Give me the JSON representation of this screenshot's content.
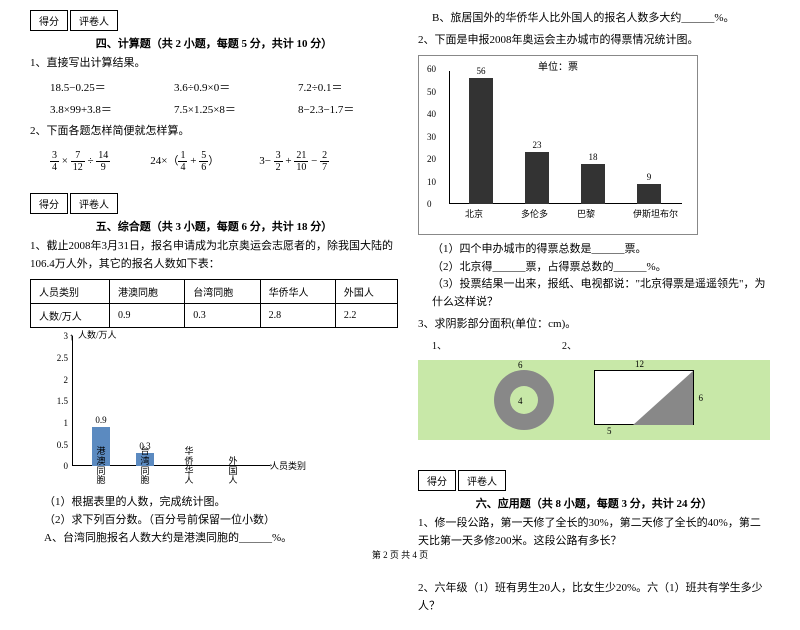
{
  "score_labels": {
    "score": "得分",
    "reviewer": "评卷人"
  },
  "section4": {
    "title": "四、计算题（共 2 小题，每题 5 分，共计 10 分）",
    "q1": "1、直接写出计算结果。",
    "calc": [
      "18.5−0.25＝",
      "3.6÷0.9×0＝",
      "7.2÷0.1＝",
      "3.8×99+3.8＝",
      "7.5×1.25×8＝",
      "8−2.3−1.7＝"
    ],
    "q2": "2、下面各题怎样简便就怎样算。",
    "fracs": [
      "3/4 × 7/12 ÷ 14/9",
      "24×（1/4 + 5/6）",
      "3− 3/2 + 21/10 − 2/7"
    ]
  },
  "section5": {
    "title": "五、综合题（共 3 小题，每题 6 分，共计 18 分）",
    "q1": "1、截止2008年3月31日，报名申请成为北京奥运会志愿者的，除我国大陆的106.4万人外，其它的报名人数如下表：",
    "table": {
      "headers": [
        "人员类别",
        "港澳同胞",
        "台湾同胞",
        "华侨华人",
        "外国人"
      ],
      "row_label": "人数/万人",
      "values": [
        "0.9",
        "0.3",
        "2.8",
        "2.2"
      ]
    },
    "chart1": {
      "y_label": "人数/万人",
      "x_label": "人员类别",
      "y_ticks": [
        "0",
        "0.5",
        "1",
        "1.5",
        "2",
        "2.5",
        "3"
      ],
      "categories": [
        "港澳同胞",
        "台湾同胞",
        "华侨华人",
        "外国人"
      ],
      "values": [
        0.9,
        0.3,
        null,
        null
      ],
      "bar_labels": [
        "0.9",
        "0.3",
        "",
        ""
      ],
      "bar_color": "#5b8ac0"
    },
    "sub1": "（1）根据表里的人数，完成统计图。",
    "sub2": "（2）求下列百分数。（百分号前保留一位小数）",
    "subA": "A、台湾同胞报名人数大约是港澳同胞的______%。",
    "subB": "B、旅居国外的华侨华人比外国人的报名人数多大约______%。",
    "q2": "2、下面是申报2008年奥运会主办城市的得票情况统计图。",
    "chart2": {
      "title": "单位：票",
      "y_ticks": [
        "0",
        "10",
        "20",
        "30",
        "40",
        "50",
        "60"
      ],
      "categories": [
        "北京",
        "多伦多",
        "巴黎",
        "伊斯坦布尔"
      ],
      "values": [
        56,
        23,
        18,
        9
      ],
      "bar_color": "#333333"
    },
    "c2_sub1": "（1）四个申办城市的得票总数是______票。",
    "c2_sub2": "（2）北京得______票，占得票总数的______%。",
    "c2_sub3": "（3）投票结果一出来，报纸、电视都说：\"北京得票是遥遥领先\"，为什么这样说？",
    "q3": "3、求阴影部分面积(单位：cm)。",
    "geo": {
      "ring_inner": "4",
      "ring_outer": "6",
      "rect_w": "12",
      "rect_h": "6",
      "rect_left": "5"
    }
  },
  "section6": {
    "title": "六、应用题（共 8 小题，每题 3 分，共计 24 分）",
    "q1": "1、修一段公路，第一天修了全长的30%，第二天修了全长的40%，第二天比第一天多修200米。这段公路有多长？",
    "q2": "2、六年级（1）班有男生20人，比女生少20%。六（1）班共有学生多少人？"
  },
  "footer": "第 2 页 共 4 页"
}
